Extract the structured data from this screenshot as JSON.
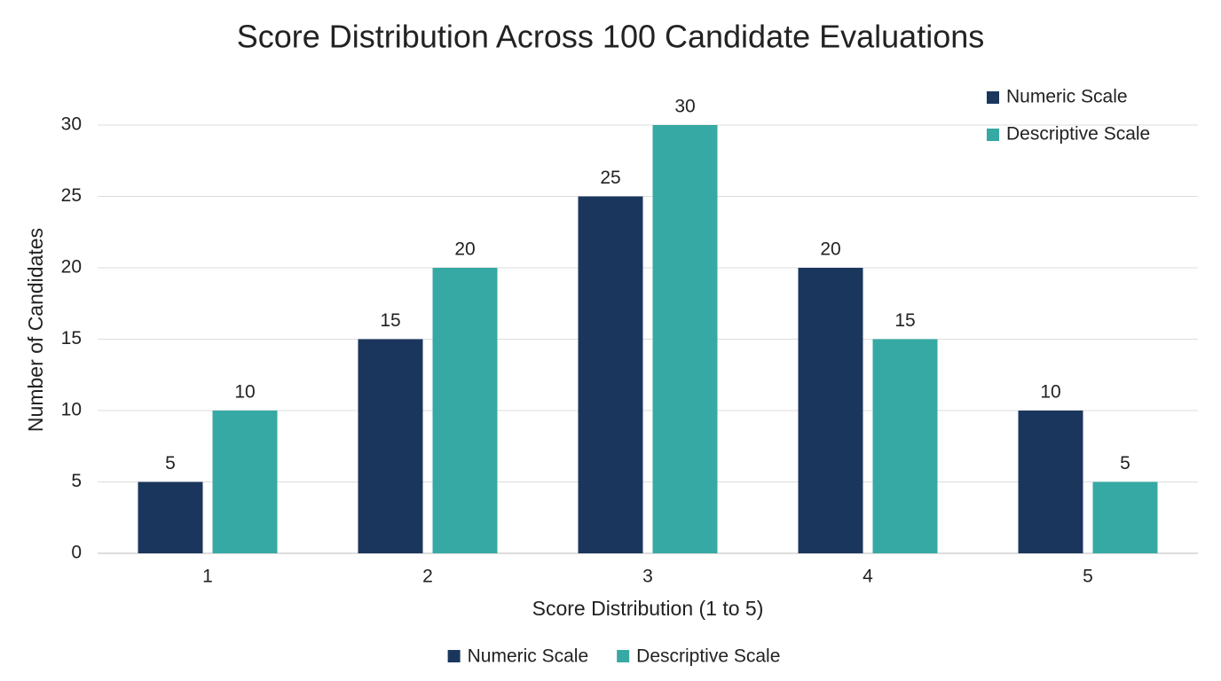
{
  "chart_data": {
    "type": "bar",
    "title": "Score Distribution Across 100 Candidate Evaluations",
    "x_label": "Score Distribution (1 to 5)",
    "y_label": "Number of Candidates",
    "categories": [
      "1",
      "2",
      "3",
      "4",
      "5"
    ],
    "series": [
      {
        "name": "Numeric Scale",
        "color": "#1b365d",
        "values": [
          5,
          15,
          25,
          20,
          10
        ]
      },
      {
        "name": "Descriptive Scale",
        "color": "#36a9a4",
        "values": [
          10,
          20,
          30,
          15,
          5
        ]
      }
    ],
    "ylim": [
      0,
      30
    ],
    "yticks": [
      0,
      5,
      10,
      15,
      20,
      25,
      30
    ],
    "grid": true,
    "legend": [
      "upper right",
      "bottom"
    ]
  }
}
